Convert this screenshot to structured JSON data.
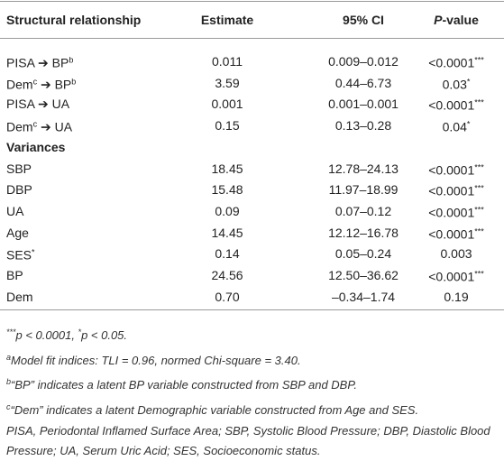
{
  "table": {
    "header": [
      [
        {
          "text": "Structural relationship"
        }
      ],
      [
        {
          "text": "Estimate"
        }
      ],
      [
        {
          "text": "95% CI"
        }
      ],
      [
        {
          "text": "P",
          "style": "italic"
        },
        {
          "text": "-value"
        }
      ]
    ],
    "rows": [
      [
        [
          {
            "text": "PISA "
          },
          {
            "text": "➔"
          },
          {
            "text": " BP"
          },
          {
            "text": "b",
            "style": "sup"
          }
        ],
        [
          {
            "text": "0.011"
          }
        ],
        [
          {
            "text": "0.009–0.012"
          }
        ],
        [
          {
            "text": "<0.0001"
          },
          {
            "text": "***",
            "style": "sup"
          }
        ]
      ],
      [
        [
          {
            "text": "Dem"
          },
          {
            "text": "c",
            "style": "sup"
          },
          {
            "text": " ➔"
          },
          {
            "text": " BP"
          },
          {
            "text": "b",
            "style": "sup"
          }
        ],
        [
          {
            "text": "3.59"
          }
        ],
        [
          {
            "text": "0.44–6.73"
          }
        ],
        [
          {
            "text": "0.03"
          },
          {
            "text": "*",
            "style": "sup"
          }
        ]
      ],
      [
        [
          {
            "text": "PISA "
          },
          {
            "text": "➔"
          },
          {
            "text": " UA"
          }
        ],
        [
          {
            "text": "0.001"
          }
        ],
        [
          {
            "text": "0.001–0.001"
          }
        ],
        [
          {
            "text": "<0.0001"
          },
          {
            "text": "***",
            "style": "sup"
          }
        ]
      ],
      [
        [
          {
            "text": "Dem"
          },
          {
            "text": "c",
            "style": "sup"
          },
          {
            "text": " ➔"
          },
          {
            "text": " UA"
          }
        ],
        [
          {
            "text": "0.15"
          }
        ],
        [
          {
            "text": "0.13–0.28"
          }
        ],
        [
          {
            "text": "0.04"
          },
          {
            "text": "*",
            "style": "sup"
          }
        ]
      ],
      [
        [
          {
            "text": "Variances",
            "style": "bold"
          }
        ]
      ],
      [
        [
          {
            "text": "SBP"
          }
        ],
        [
          {
            "text": "18.45"
          }
        ],
        [
          {
            "text": "12.78–24.13"
          }
        ],
        [
          {
            "text": "<0.0001"
          },
          {
            "text": "***",
            "style": "sup"
          }
        ]
      ],
      [
        [
          {
            "text": "DBP"
          }
        ],
        [
          {
            "text": "15.48"
          }
        ],
        [
          {
            "text": "11.97–18.99"
          }
        ],
        [
          {
            "text": "<0.0001"
          },
          {
            "text": "***",
            "style": "sup"
          }
        ]
      ],
      [
        [
          {
            "text": "UA"
          }
        ],
        [
          {
            "text": "0.09"
          }
        ],
        [
          {
            "text": "0.07–0.12"
          }
        ],
        [
          {
            "text": "<0.0001"
          },
          {
            "text": "***",
            "style": "sup"
          }
        ]
      ],
      [
        [
          {
            "text": "Age"
          }
        ],
        [
          {
            "text": "14.45"
          }
        ],
        [
          {
            "text": "12.12–16.78"
          }
        ],
        [
          {
            "text": "<0.0001"
          },
          {
            "text": "***",
            "style": "sup"
          }
        ]
      ],
      [
        [
          {
            "text": "SES"
          },
          {
            "text": "*",
            "style": "sup"
          }
        ],
        [
          {
            "text": "0.14"
          }
        ],
        [
          {
            "text": "0.05–0.24"
          }
        ],
        [
          {
            "text": "0.003"
          }
        ]
      ],
      [
        [
          {
            "text": "BP"
          }
        ],
        [
          {
            "text": "24.56"
          }
        ],
        [
          {
            "text": "12.50–36.62"
          }
        ],
        [
          {
            "text": "<0.0001"
          },
          {
            "text": "***",
            "style": "sup"
          }
        ]
      ],
      [
        [
          {
            "text": "Dem"
          }
        ],
        [
          {
            "text": "0.70"
          }
        ],
        [
          {
            "text": "–0.34–1.74"
          }
        ],
        [
          {
            "text": "0.19"
          }
        ]
      ]
    ],
    "footnotes": [
      [
        {
          "text": "***",
          "style": "sup"
        },
        {
          "text": "p < 0.0001, "
        },
        {
          "text": "*",
          "style": "sup"
        },
        {
          "text": "p < 0.05."
        }
      ],
      [
        {
          "text": "a",
          "style": "sup"
        },
        {
          "text": "Model fit indices: TLI = 0.96, normed Chi-square = 3.40."
        }
      ],
      [
        {
          "text": "b",
          "style": "sup"
        },
        {
          "text": "“BP” indicates a latent BP variable constructed from SBP and DBP."
        }
      ],
      [
        {
          "text": "c",
          "style": "sup"
        },
        {
          "text": "“Dem” indicates a latent Demographic variable constructed from Age and SES."
        }
      ],
      [
        {
          "text": "PISA, Periodontal Inflamed Surface Area; SBP, Systolic Blood Pressure; DBP, Diastolic Blood Pressure; UA, Serum Uric Acid; SES, Socioeconomic status."
        }
      ]
    ]
  }
}
